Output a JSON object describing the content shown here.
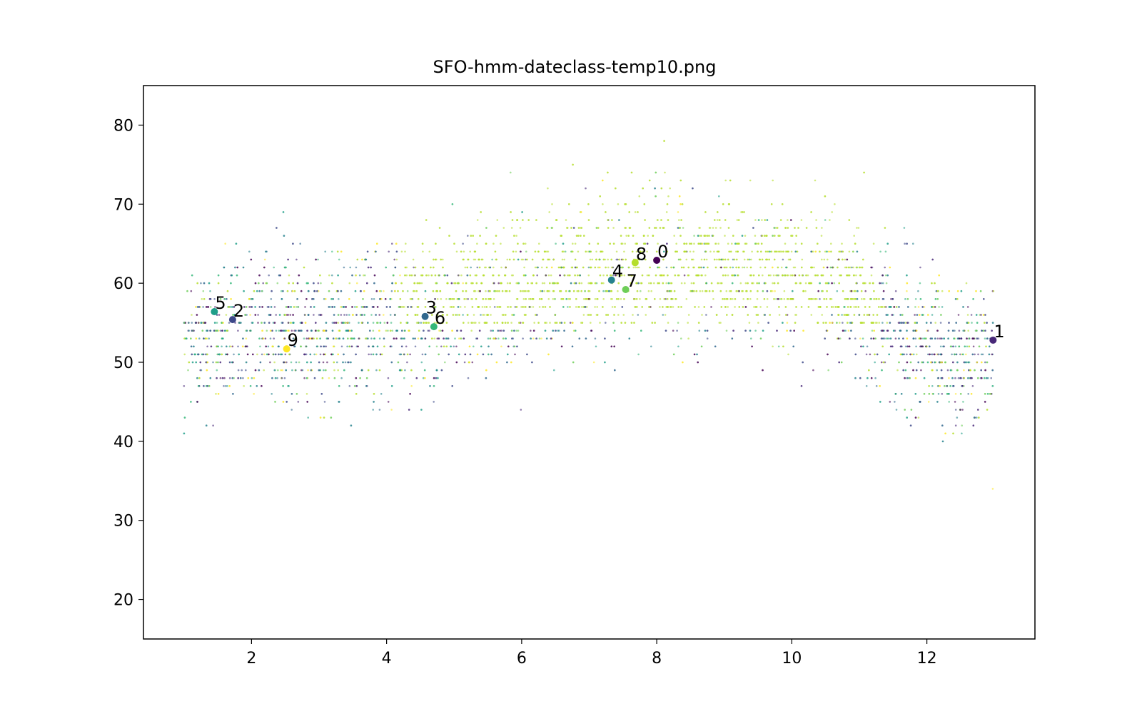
{
  "chart_data": {
    "type": "scatter",
    "title": "SFO-hmm-dateclass-temp10.png",
    "xlabel": "",
    "ylabel": "",
    "xlim": [
      0.4,
      13.6
    ],
    "ylim": [
      15,
      85
    ],
    "x_ticks": [
      2,
      4,
      6,
      8,
      10,
      12
    ],
    "y_ticks": [
      20,
      30,
      40,
      50,
      60,
      70,
      80
    ],
    "grid": false,
    "colormap": "viridis",
    "class_colors": [
      "#440154",
      "#482878",
      "#3e4989",
      "#31688e",
      "#26828e",
      "#1f9e89",
      "#35b779",
      "#6ece58",
      "#b5de2b",
      "#fde725"
    ],
    "background_points": {
      "description_hidden": true,
      "x_range": [
        1,
        13
      ],
      "y_range": [
        18,
        82
      ],
      "approx_count": 5000,
      "mean_curve_month_temp": [
        [
          1,
          52
        ],
        [
          2,
          54
        ],
        [
          3,
          54.5
        ],
        [
          4,
          55.5
        ],
        [
          5,
          57
        ],
        [
          6,
          59
        ],
        [
          7,
          61
        ],
        [
          8,
          62
        ],
        [
          9,
          62.5
        ],
        [
          10,
          61.5
        ],
        [
          11,
          57
        ],
        [
          12,
          52
        ],
        [
          13,
          50
        ]
      ],
      "spread_temp": 4.5
    },
    "centroids": [
      {
        "label": "0",
        "x": 8.0,
        "y": 62.9,
        "class": 0
      },
      {
        "label": "1",
        "x": 12.98,
        "y": 52.8,
        "class": 1
      },
      {
        "label": "2",
        "x": 1.72,
        "y": 55.4,
        "class": 2
      },
      {
        "label": "3",
        "x": 4.57,
        "y": 55.8,
        "class": 3
      },
      {
        "label": "4",
        "x": 7.33,
        "y": 60.4,
        "class": 4
      },
      {
        "label": "5",
        "x": 1.45,
        "y": 56.4,
        "class": 5
      },
      {
        "label": "6",
        "x": 4.7,
        "y": 54.5,
        "class": 6
      },
      {
        "label": "7",
        "x": 7.54,
        "y": 59.2,
        "class": 7
      },
      {
        "label": "8",
        "x": 7.68,
        "y": 62.6,
        "class": 8
      },
      {
        "label": "9",
        "x": 2.52,
        "y": 51.7,
        "class": 9
      }
    ]
  }
}
